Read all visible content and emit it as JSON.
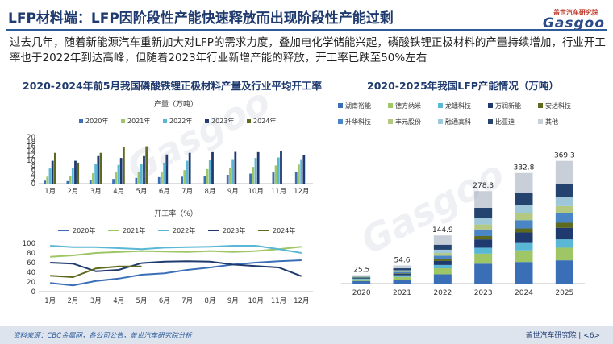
{
  "title": "LFP材料端：LFP因阶段性产能快速释放而出现阶段性产能过剩",
  "intro": "过去几年，随着新能源汽车重新加大对LFP的需求力度，叠加电化学储能兴起，磷酸铁锂正极材料的产量持续增加，行业开工率也于2022年到达高峰，但随着2023年行业新增产能的释放，开工率已跌至50%左右",
  "logo": {
    "top": "盖世汽车研究院",
    "main": "Gasgoo",
    "watermark": "Gasgoo",
    "watermark_cn": "盖世汽车研究院"
  },
  "colors": {
    "2020": "#3a6fb7",
    "2021": "#9ec664",
    "2022": "#5ab7d6",
    "2023": "#1f3a6e",
    "2024": "#5e6a1e"
  },
  "stack_colors": [
    "#3a6fb7",
    "#9ec664",
    "#5ab7d6",
    "#1f3a6e",
    "#5e6a1e",
    "#4a86c5",
    "#b3c982",
    "#9fc7da",
    "#24446f",
    "#c9cfd8"
  ],
  "footer": {
    "source": "资料来源：CBC金属网，各公司公告，盖世汽车研究院分析",
    "right": "盖世汽车研究院 | <6>"
  },
  "chart_data": [
    {
      "type": "bar",
      "title": "2020-2024年前5月我国磷酸铁锂正极材料产量及行业平均开工率",
      "ylabel": "产量（万吨）",
      "categories": [
        "1月",
        "2月",
        "3月",
        "4月",
        "5月",
        "6月",
        "7月",
        "8月",
        "9月",
        "10月",
        "11月",
        "12月"
      ],
      "ylim": [
        0,
        20
      ],
      "yticks": [
        0,
        2,
        4,
        6,
        8,
        10,
        12,
        14,
        16,
        18,
        20
      ],
      "legend": "top",
      "series": [
        {
          "name": "2020年",
          "values": [
            1.3,
            1.1,
            1.5,
            2.0,
            2.5,
            2.8,
            3.0,
            3.4,
            3.8,
            4.3,
            4.8,
            5.2
          ]
        },
        {
          "name": "2021年",
          "values": [
            3.0,
            3.2,
            4.5,
            4.8,
            5.0,
            5.2,
            5.8,
            6.2,
            6.8,
            7.2,
            7.8,
            8.2
          ]
        },
        {
          "name": "2022年",
          "values": [
            6.5,
            6.8,
            8.5,
            8.0,
            8.5,
            9.0,
            9.8,
            10.0,
            10.5,
            11.0,
            11.2,
            10.5
          ]
        },
        {
          "name": "2023年",
          "values": [
            9.8,
            9.8,
            11.8,
            11.0,
            11.8,
            12.5,
            13.2,
            13.5,
            13.6,
            13.5,
            13.8,
            12.2
          ]
        },
        {
          "name": "2024年",
          "values": [
            13.2,
            9.0,
            13.2,
            15.8,
            16.0,
            null,
            null,
            null,
            null,
            null,
            null,
            null
          ]
        }
      ]
    },
    {
      "type": "line",
      "ylabel": "开工率（%）",
      "categories": [
        "1月",
        "2月",
        "3月",
        "4月",
        "5月",
        "6月",
        "7月",
        "8月",
        "9月",
        "10月",
        "11月",
        "12月"
      ],
      "ylim": [
        0,
        100
      ],
      "yticks": [
        0,
        20,
        40,
        60,
        80,
        100
      ],
      "legend": "top",
      "series": [
        {
          "name": "2020年",
          "values": [
            18,
            13,
            22,
            27,
            35,
            38,
            45,
            50,
            56,
            60,
            63,
            65
          ]
        },
        {
          "name": "2021年",
          "values": [
            72,
            75,
            80,
            82,
            84,
            83,
            82,
            84,
            82,
            84,
            88,
            93
          ]
        },
        {
          "name": "2022年",
          "values": [
            95,
            92,
            92,
            90,
            88,
            91,
            92,
            93,
            95,
            95,
            88,
            80
          ]
        },
        {
          "name": "2023年",
          "values": [
            60,
            58,
            42,
            45,
            59,
            62,
            63,
            62,
            56,
            53,
            50,
            32
          ]
        },
        {
          "name": "2024年",
          "values": [
            33,
            30,
            48,
            52,
            52,
            null,
            null,
            null,
            null,
            null,
            null,
            null
          ]
        }
      ]
    },
    {
      "type": "bar",
      "title": "2020-2025年我国LFP产能情况（万吨）",
      "stacked": true,
      "categories": [
        "2020",
        "2021",
        "2022",
        "2023",
        "2024",
        "2025"
      ],
      "totals": [
        25.5,
        54.6,
        144.9,
        278.3,
        332.8,
        369.3
      ],
      "legend": "top",
      "series": [
        {
          "name": "湖南裕能",
          "values": [
            8,
            12,
            28,
            60,
            65,
            70
          ]
        },
        {
          "name": "德方纳米",
          "values": [
            5,
            8,
            18,
            30,
            35,
            38
          ]
        },
        {
          "name": "龙蟠科技",
          "values": [
            2,
            5,
            10,
            18,
            22,
            25
          ]
        },
        {
          "name": "万润新能",
          "values": [
            2,
            4,
            12,
            25,
            32,
            35
          ]
        },
        {
          "name": "安达科技",
          "values": [
            1,
            2,
            6,
            10,
            12,
            15
          ]
        },
        {
          "name": "升华科技",
          "values": [
            2,
            4,
            10,
            20,
            25,
            28
          ]
        },
        {
          "name": "丰元股份",
          "values": [
            0.5,
            2,
            8,
            15,
            20,
            22
          ]
        },
        {
          "name": "融通高科",
          "values": [
            1,
            3,
            10,
            20,
            25,
            28
          ]
        },
        {
          "name": "比亚迪",
          "values": [
            2,
            6,
            15,
            30,
            36,
            38
          ]
        },
        {
          "name": "其他",
          "values": [
            2,
            8.6,
            27.9,
            50.3,
            60.8,
            70.3
          ]
        }
      ]
    }
  ]
}
